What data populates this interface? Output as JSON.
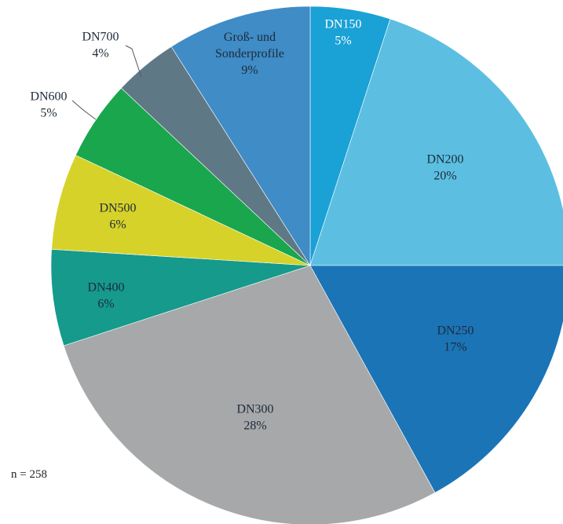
{
  "chart_data": {
    "type": "pie",
    "slices": [
      {
        "label": "DN150",
        "value": 5,
        "display": "5%",
        "color": "#1aa1d6",
        "text_color": "#ffffff"
      },
      {
        "label": "DN200",
        "value": 20,
        "display": "20%",
        "color": "#5cbfe2",
        "text_color": "#1d2b3a"
      },
      {
        "label": "DN250",
        "value": 17,
        "display": "17%",
        "color": "#1b74b6",
        "text_color": "#1d2b3a"
      },
      {
        "label": "DN300",
        "value": 28,
        "display": "28%",
        "color": "#a6a8aa",
        "text_color": "#1d2b3a"
      },
      {
        "label": "DN400",
        "value": 6,
        "display": "6%",
        "color": "#159a8c",
        "text_color": "#1d2b3a"
      },
      {
        "label": "DN500",
        "value": 6,
        "display": "6%",
        "color": "#d6d22a",
        "text_color": "#1d2b3a"
      },
      {
        "label": "DN600",
        "value": 5,
        "display": "5%",
        "color": "#19a64d",
        "text_color": "#1d2b3a"
      },
      {
        "label": "DN700",
        "value": 4,
        "display": "4%",
        "color": "#5f7886",
        "text_color": "#1d2b3a"
      },
      {
        "label": "Groß- und Sonderprofile",
        "value": 9,
        "display": "9%",
        "color": "#3f8cc6",
        "text_color": "#1d2b3a"
      }
    ],
    "legend": "none"
  },
  "note": "n = 258"
}
